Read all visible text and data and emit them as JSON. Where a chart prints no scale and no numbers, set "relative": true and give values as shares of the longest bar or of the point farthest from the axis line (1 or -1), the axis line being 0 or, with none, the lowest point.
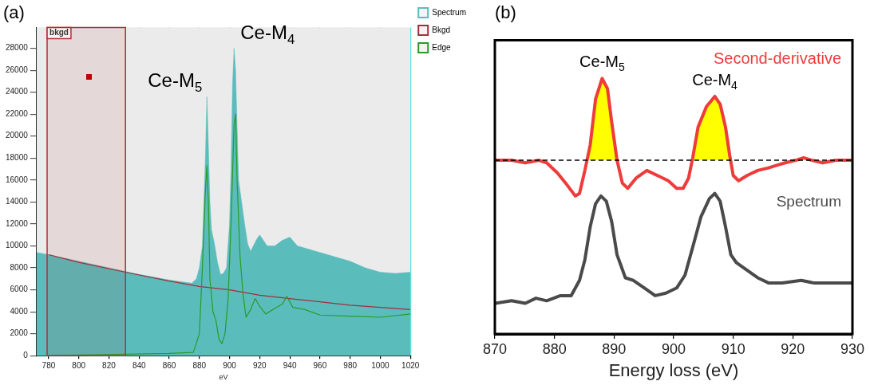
{
  "chart_data": [
    {
      "type": "line",
      "title": "(a)",
      "xlabel": "eV",
      "xlim": [
        772,
        1020
      ],
      "xticks": [
        780,
        800,
        820,
        840,
        860,
        880,
        900,
        920,
        940,
        960,
        980,
        1000,
        1020
      ],
      "ylim": [
        0,
        29900
      ],
      "yticks": [
        0,
        2000,
        4000,
        6000,
        8000,
        10000,
        12000,
        14000,
        16000,
        18000,
        20000,
        22000,
        24000,
        26000,
        28000
      ],
      "grid": true,
      "legend": "right",
      "marker": "none",
      "series": [
        {
          "name": "Spectrum",
          "type": "area",
          "color": "#5bbcbc",
          "x": [
            772,
            780,
            800,
            820,
            840,
            860,
            875,
            878,
            880,
            882,
            884,
            885,
            886,
            887,
            888,
            890,
            892,
            894,
            896,
            898,
            900,
            901,
            902,
            903,
            904,
            905,
            906,
            908,
            910,
            912,
            914,
            918,
            920,
            925,
            930,
            935,
            940,
            945,
            950,
            960,
            970,
            980,
            990,
            1000,
            1010,
            1020
          ],
          "values": [
            9400,
            9200,
            8600,
            8000,
            7400,
            6900,
            6600,
            7000,
            8000,
            10000,
            18000,
            23600,
            19000,
            14000,
            11500,
            10200,
            8500,
            7400,
            7500,
            8000,
            12000,
            17000,
            24600,
            28000,
            26000,
            21000,
            16000,
            14000,
            12000,
            10200,
            9500,
            10600,
            11000,
            10000,
            10000,
            10500,
            10800,
            10000,
            9800,
            9400,
            9000,
            8600,
            8000,
            7600,
            7500,
            7600
          ]
        },
        {
          "name": "Bkgd",
          "color": "#a0303a",
          "x": [
            780,
            800,
            831,
            860,
            880,
            900,
            920,
            940,
            960,
            980,
            1000,
            1020
          ],
          "values": [
            9200,
            8500,
            7600,
            6800,
            6300,
            6000,
            5500,
            5200,
            4900,
            4600,
            4400,
            4200
          ]
        },
        {
          "name": "Edge",
          "color": "#2a9a2a",
          "x": [
            780,
            860,
            876,
            880,
            882,
            884,
            885,
            886,
            887,
            889,
            891,
            893,
            895,
            897,
            899,
            901,
            903,
            904,
            905,
            907,
            909,
            911,
            914,
            917,
            920,
            924,
            930,
            935,
            938,
            942,
            950,
            960,
            980,
            1000,
            1020
          ],
          "values": [
            0,
            200,
            300,
            2000,
            8000,
            15000,
            17300,
            14000,
            7000,
            4000,
            3200,
            1500,
            1100,
            2000,
            5000,
            12000,
            21000,
            22000,
            16000,
            9000,
            5500,
            3500,
            4200,
            5200,
            4500,
            3800,
            4300,
            4700,
            5400,
            4400,
            4200,
            3700,
            3600,
            3500,
            3800
          ]
        }
      ],
      "bands": [
        {
          "axis": "x",
          "from": 779,
          "to": 831,
          "label": "bkgd",
          "color": "#b03030"
        }
      ],
      "annotations": [
        {
          "text": "Ce-M$_{5}$",
          "x": 885,
          "y": 23600
        },
        {
          "text": "Ce-M$_{4}$",
          "x": 903,
          "y": 28000
        }
      ]
    },
    {
      "type": "line",
      "title": "(b)",
      "xlabel": "Energy loss (eV)",
      "relative": true,
      "xlim": [
        870,
        930
      ],
      "xticks": [
        870,
        880,
        890,
        900,
        910,
        920,
        930
      ],
      "grid": false,
      "legend": false,
      "marker": "none",
      "series": [
        {
          "name": "Second-derivative",
          "color": "#ee3b3b",
          "x": [
            870.1,
            872.8,
            875.1,
            877.4,
            878.7,
            880.5,
            881.9,
            883.5,
            884.2,
            885.1,
            886.0,
            886.9,
            888.0,
            888.9,
            889.6,
            890.5,
            891.4,
            892.3,
            893.7,
            895.5,
            897.3,
            899.1,
            900.5,
            901.6,
            902.5,
            903.2,
            904.1,
            905.5,
            906.9,
            907.8,
            908.7,
            909.4,
            910.0,
            910.9,
            912.3,
            914.1,
            915.9,
            917.3,
            918.7,
            920.5,
            921.8,
            923.2,
            925.0,
            927.3,
            930
          ],
          "values": [
            0.68,
            0.68,
            0.67,
            0.68,
            0.67,
            0.63,
            0.59,
            0.54,
            0.55,
            0.64,
            0.74,
            0.92,
            1.0,
            0.96,
            0.83,
            0.68,
            0.59,
            0.57,
            0.61,
            0.64,
            0.62,
            0.6,
            0.57,
            0.57,
            0.61,
            0.69,
            0.81,
            0.89,
            0.93,
            0.9,
            0.81,
            0.7,
            0.62,
            0.6,
            0.62,
            0.64,
            0.65,
            0.66,
            0.67,
            0.68,
            0.69,
            0.68,
            0.67,
            0.68,
            0.68
          ]
        },
        {
          "name": "Spectrum",
          "color": "#4a4a4a",
          "x": [
            870.1,
            872.8,
            875.1,
            876.9,
            878.7,
            881.0,
            882.8,
            884.2,
            885.1,
            886.0,
            886.9,
            887.8,
            888.7,
            889.6,
            890.5,
            891.9,
            893.2,
            895.1,
            896.9,
            898.7,
            900.5,
            901.9,
            903.2,
            904.6,
            906.0,
            906.9,
            907.8,
            908.7,
            909.6,
            910.5,
            912.3,
            914.1,
            915.9,
            918.2,
            921.4,
            923.5,
            927.3,
            930
          ],
          "values": [
            0.12,
            0.13,
            0.12,
            0.14,
            0.13,
            0.15,
            0.15,
            0.21,
            0.29,
            0.42,
            0.51,
            0.54,
            0.52,
            0.44,
            0.31,
            0.22,
            0.21,
            0.18,
            0.15,
            0.16,
            0.18,
            0.23,
            0.34,
            0.46,
            0.53,
            0.55,
            0.52,
            0.42,
            0.31,
            0.28,
            0.25,
            0.22,
            0.2,
            0.2,
            0.21,
            0.2,
            0.2,
            0.2
          ]
        }
      ],
      "ref_lines": [
        {
          "axis": "y",
          "value": 0.68,
          "color": "#000000",
          "line_style": "dashed"
        }
      ],
      "annotations": [
        {
          "text": "Ce-M$_{5}$",
          "x": 888,
          "y": 1.0
        },
        {
          "text": "Ce-M$_{4}$",
          "x": 906.9,
          "y": 0.93
        }
      ]
    }
  ]
}
